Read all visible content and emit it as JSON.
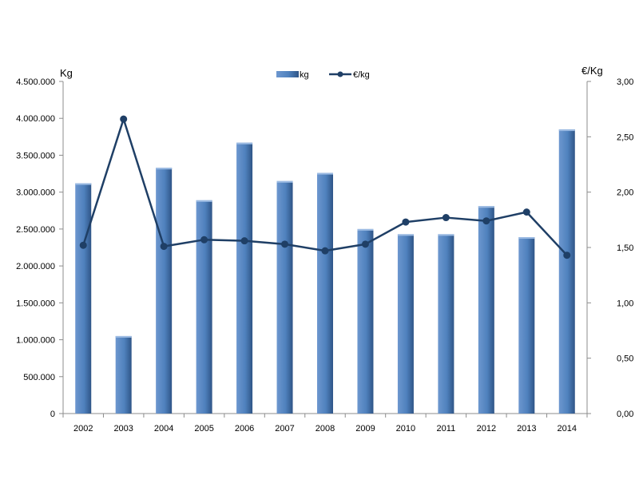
{
  "chart_data": {
    "type": "bar",
    "categories": [
      "2002",
      "2003",
      "2004",
      "2005",
      "2006",
      "2007",
      "2008",
      "2009",
      "2010",
      "2011",
      "2012",
      "2013",
      "2014"
    ],
    "series": [
      {
        "name": "kg",
        "type": "bar",
        "axis": "left",
        "color": "#4f81bd",
        "values": [
          3120000,
          1050000,
          3330000,
          2890000,
          3670000,
          3150000,
          3260000,
          2500000,
          2430000,
          2430000,
          2810000,
          2390000,
          3850000
        ]
      },
      {
        "name": "€/kg",
        "type": "line",
        "axis": "right",
        "color": "#1f3f66",
        "values": [
          1.52,
          2.66,
          1.51,
          1.57,
          1.56,
          1.53,
          1.47,
          1.53,
          1.73,
          1.77,
          1.74,
          1.82,
          1.43
        ]
      }
    ],
    "ylabel": "Kg",
    "y2label": "€/Kg",
    "ylim": [
      0,
      4500000
    ],
    "y2lim": [
      0,
      3
    ],
    "yticks": [
      "0",
      "500.000",
      "1.000.000",
      "1.500.000",
      "2.000.000",
      "2.500.000",
      "3.000.000",
      "3.500.000",
      "4.000.000",
      "4.500.000"
    ],
    "y2ticks": [
      "0,00",
      "0,50",
      "1,00",
      "1,50",
      "2,00",
      "2,50",
      "3,00"
    ],
    "legend": "top-center",
    "grid": false
  }
}
